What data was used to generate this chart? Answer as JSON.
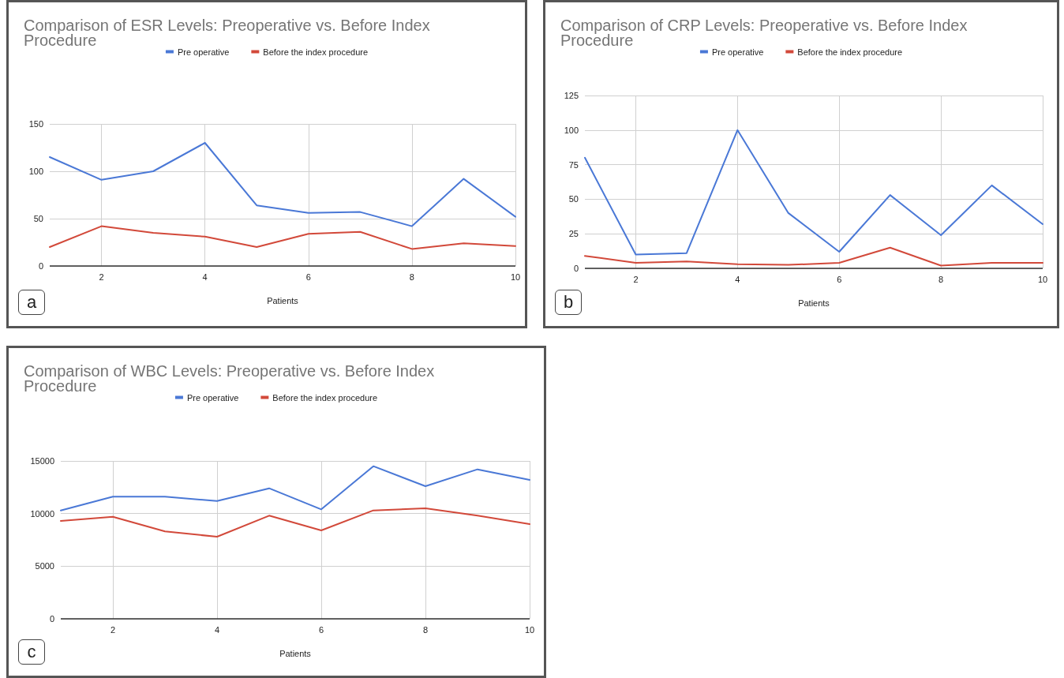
{
  "chart_data": [
    {
      "type": "line",
      "title": "Comparison of ESR Levels: Preoperative vs. Before Index Procedure",
      "xlabel": "Patients",
      "x": [
        1,
        2,
        3,
        4,
        5,
        6,
        7,
        8,
        9,
        10
      ],
      "series": [
        {
          "name": "Pre operative",
          "color": "#4a78d6",
          "values": [
            115,
            91,
            100,
            130,
            64,
            56,
            57,
            42,
            92,
            52
          ]
        },
        {
          "name": "Before the index procedure",
          "color": "#d2493a",
          "values": [
            20,
            42,
            35,
            31,
            20,
            34,
            36,
            18,
            24,
            21
          ]
        }
      ],
      "xlim": [
        1,
        10
      ],
      "xticks": [
        2,
        4,
        6,
        8,
        10
      ],
      "ylim": [
        0,
        150
      ],
      "yticks": [
        0,
        50,
        100,
        150
      ],
      "grid": true,
      "legend": "top",
      "marker": "none",
      "line_style": "solid",
      "annotations": [
        "a"
      ]
    },
    {
      "type": "line",
      "title": "Comparison of CRP Levels: Preoperative vs. Before Index Procedure",
      "xlabel": "Patients",
      "x": [
        1,
        2,
        3,
        4,
        5,
        6,
        7,
        8,
        9,
        10
      ],
      "series": [
        {
          "name": "Pre operative",
          "color": "#4a78d6",
          "values": [
            80,
            10,
            11,
            100,
            40,
            12,
            53,
            24,
            60,
            32
          ]
        },
        {
          "name": "Before the index procedure",
          "color": "#d2493a",
          "values": [
            9,
            4,
            5,
            3,
            2.5,
            4,
            15,
            2,
            4,
            4
          ]
        }
      ],
      "xlim": [
        1,
        10
      ],
      "xticks": [
        2,
        4,
        6,
        8,
        10
      ],
      "ylim": [
        0,
        125
      ],
      "yticks": [
        0,
        25,
        50,
        75,
        100,
        125
      ],
      "grid": true,
      "legend": "top",
      "marker": "none",
      "line_style": "solid",
      "annotations": [
        "b"
      ]
    },
    {
      "type": "line",
      "title": "Comparison of WBC Levels: Preoperative vs. Before Index Procedure",
      "xlabel": "Patients",
      "x": [
        1,
        2,
        3,
        4,
        5,
        6,
        7,
        8,
        9,
        10
      ],
      "series": [
        {
          "name": "Pre operative",
          "color": "#4a78d6",
          "values": [
            10300,
            11600,
            11600,
            11200,
            12400,
            10400,
            14500,
            12600,
            14200,
            13200
          ]
        },
        {
          "name": "Before the index procedure",
          "color": "#d2493a",
          "values": [
            9300,
            9700,
            8300,
            7800,
            9800,
            8400,
            10300,
            10500,
            9800,
            9000
          ]
        }
      ],
      "xlim": [
        1,
        10
      ],
      "xticks": [
        2,
        4,
        6,
        8,
        10
      ],
      "ylim": [
        0,
        15000
      ],
      "yticks": [
        0,
        5000,
        10000,
        15000
      ],
      "grid": true,
      "legend": "top",
      "marker": "none",
      "line_style": "solid",
      "annotations": [
        "c"
      ]
    }
  ]
}
